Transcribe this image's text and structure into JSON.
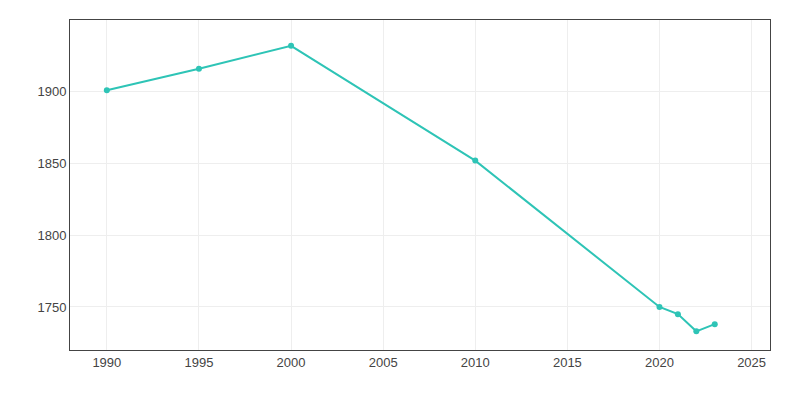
{
  "chart_data": {
    "type": "line",
    "x": [
      1990,
      1995,
      2000,
      2010,
      2020,
      2021,
      2022,
      2023
    ],
    "values": [
      1901,
      1916,
      1932,
      1852,
      1750,
      1745,
      1733,
      1738
    ],
    "color": "#2ec4b6",
    "marker": "circle",
    "xlim": [
      1988,
      2026
    ],
    "ylim": [
      1720,
      1950
    ],
    "xticks": [
      1990,
      1995,
      2000,
      2005,
      2010,
      2015,
      2020,
      2025
    ],
    "yticks": [
      1750,
      1800,
      1850,
      1900
    ],
    "grid": true
  }
}
